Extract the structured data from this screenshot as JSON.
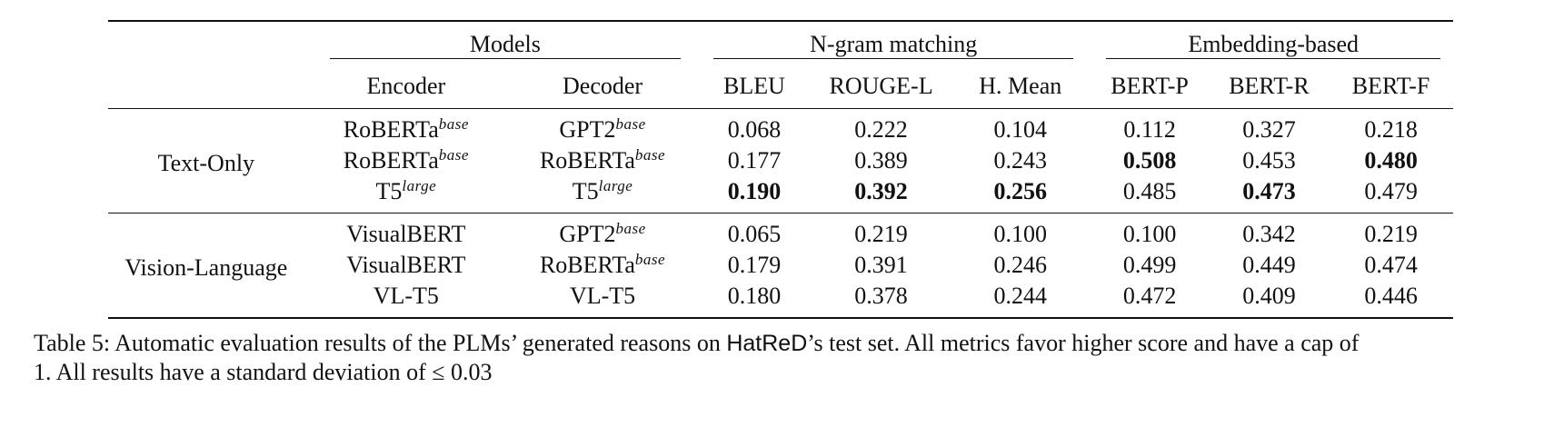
{
  "groups": {
    "models": "Models",
    "ngram": "N-gram matching",
    "embedding": "Embedding-based"
  },
  "columns": {
    "encoder": "Encoder",
    "decoder": "Decoder",
    "bleu": "BLEU",
    "rouge": "ROUGE-L",
    "hmean": "H. Mean",
    "bertp": "BERT-P",
    "bertr": "BERT-R",
    "bertf": "BERT-F"
  },
  "sections": [
    {
      "label": "Text-Only",
      "rows": [
        {
          "enc": "RoBERTa",
          "enc_sup": "base",
          "dec": "GPT2",
          "dec_sup": "base",
          "bleu": "0.068",
          "rouge": "0.222",
          "hmean": "0.104",
          "bertp": "0.112",
          "bertr": "0.327",
          "bertf": "0.218"
        },
        {
          "enc": "RoBERTa",
          "enc_sup": "base",
          "dec": "RoBERTa",
          "dec_sup": "base",
          "bleu": "0.177",
          "rouge": "0.389",
          "hmean": "0.243",
          "bertp": "0.508",
          "bertr": "0.453",
          "bertf": "0.480"
        },
        {
          "enc": "T5",
          "enc_sup": "large",
          "dec": "T5",
          "dec_sup": "large",
          "bleu": "0.190",
          "rouge": "0.392",
          "hmean": "0.256",
          "bertp": "0.485",
          "bertr": "0.473",
          "bertf": "0.479"
        }
      ]
    },
    {
      "label": "Vision-Language",
      "rows": [
        {
          "enc": "VisualBERT",
          "enc_sup": "",
          "dec": "GPT2",
          "dec_sup": "base",
          "bleu": "0.065",
          "rouge": "0.219",
          "hmean": "0.100",
          "bertp": "0.100",
          "bertr": "0.342",
          "bertf": "0.219"
        },
        {
          "enc": "VisualBERT",
          "enc_sup": "",
          "dec": "RoBERTa",
          "dec_sup": "base",
          "bleu": "0.179",
          "rouge": "0.391",
          "hmean": "0.246",
          "bertp": "0.499",
          "bertr": "0.449",
          "bertf": "0.474"
        },
        {
          "enc": "VL-T5",
          "enc_sup": "",
          "dec": "VL-T5",
          "dec_sup": "",
          "bleu": "0.180",
          "rouge": "0.378",
          "hmean": "0.244",
          "bertp": "0.472",
          "bertr": "0.409",
          "bertf": "0.446"
        }
      ]
    }
  ],
  "caption": {
    "part1": "Table 5: Automatic evaluation results of the PLMs’ generated reasons on ",
    "dataset": "HatReD",
    "part2": "’s test set. All metrics favor higher score and have a cap of",
    "line2": "1. All results have a standard deviation of ≤ 0.03"
  }
}
